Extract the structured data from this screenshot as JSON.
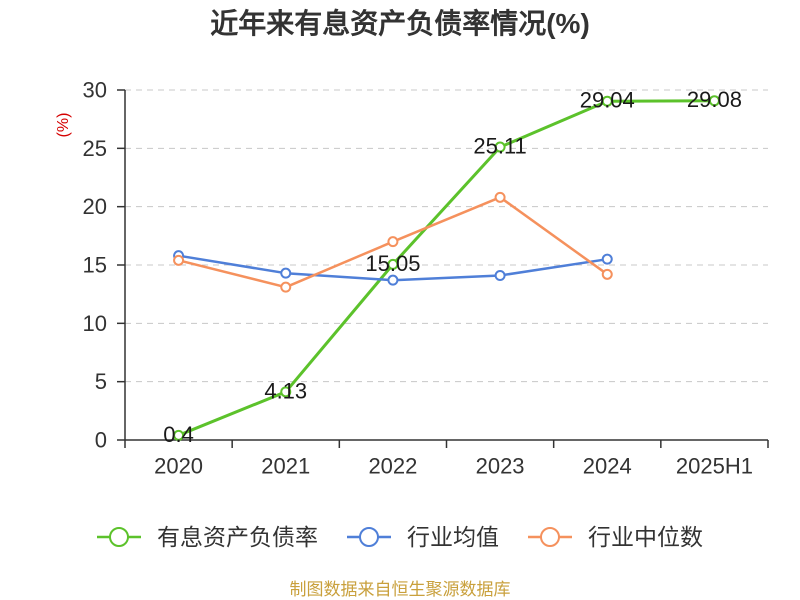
{
  "footer": "制图数据来自恒生聚源数据库",
  "chart_data": {
    "type": "line",
    "title": "近年来有息资产负债率情况(%)",
    "ylabel": "(%)",
    "categories": [
      "2020",
      "2021",
      "2022",
      "2023",
      "2024",
      "2025H1"
    ],
    "ylim": [
      0,
      30
    ],
    "yticks": [
      0,
      5,
      10,
      15,
      20,
      25,
      30
    ],
    "grid": true,
    "legend": "bottom",
    "series": [
      {
        "name": "有息资产负债率",
        "color": "#5cc22b",
        "data_labels": true,
        "values": [
          0.4,
          4.13,
          15.05,
          25.11,
          29.04,
          29.08
        ]
      },
      {
        "name": "行业均值",
        "color": "#4f7fd8",
        "data_labels": false,
        "values": [
          15.8,
          14.3,
          13.7,
          14.1,
          15.5,
          null
        ]
      },
      {
        "name": "行业中位数",
        "color": "#f5915d",
        "data_labels": false,
        "values": [
          15.4,
          13.1,
          17.0,
          20.8,
          14.2,
          null
        ]
      }
    ]
  }
}
